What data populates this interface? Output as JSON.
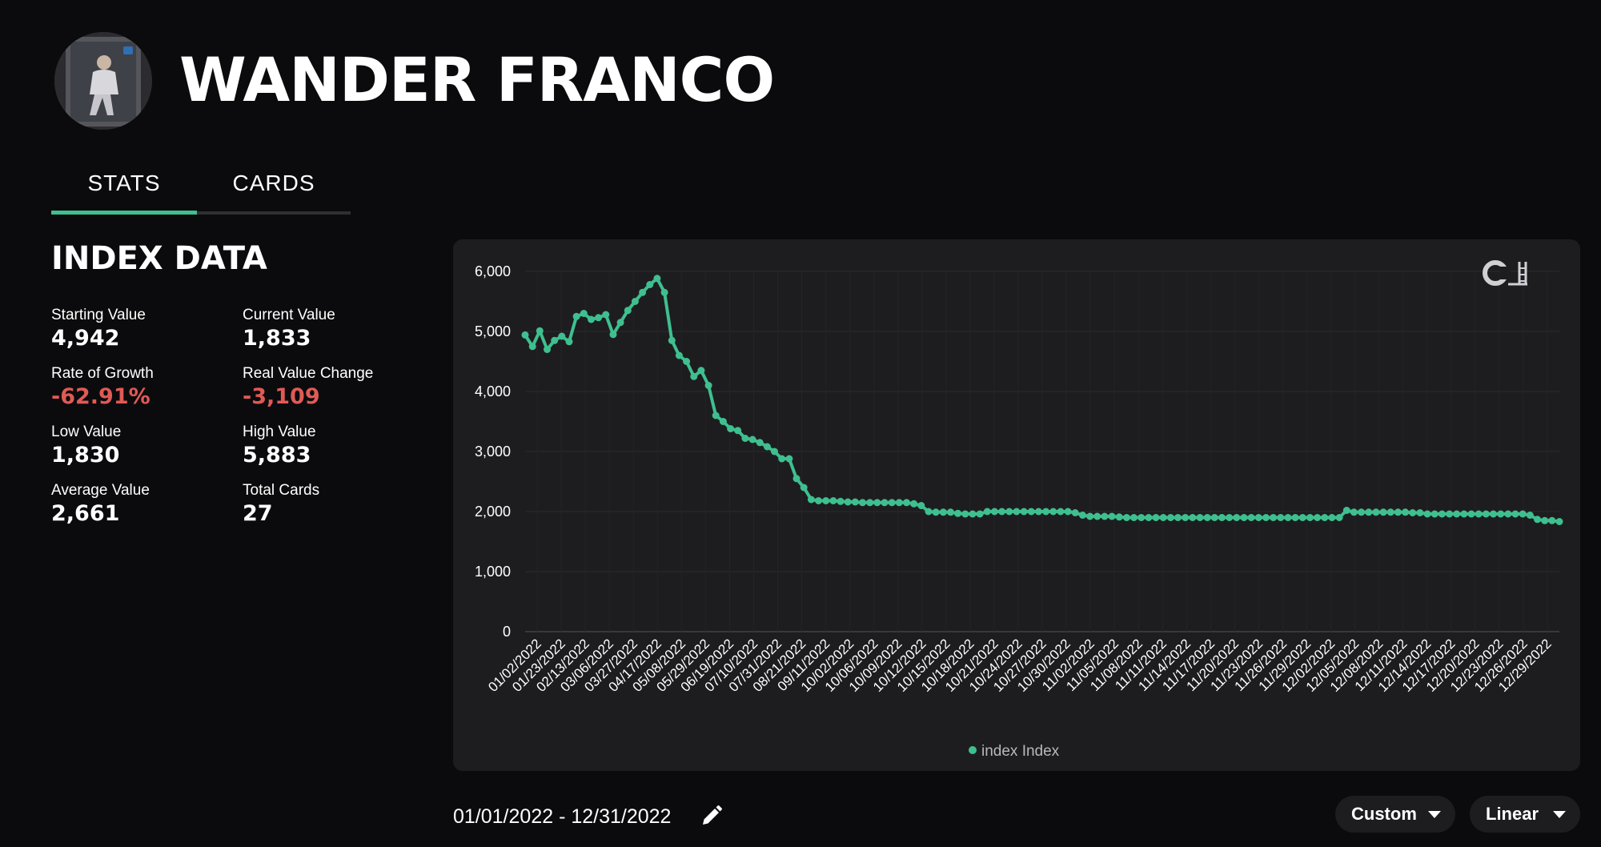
{
  "player": {
    "name": "WANDER FRANCO"
  },
  "tabs": [
    {
      "label": "STATS",
      "active": true
    },
    {
      "label": "CARDS",
      "active": false
    }
  ],
  "index": {
    "title": "INDEX DATA",
    "stats": [
      {
        "label": "Starting Value",
        "value": "4,942",
        "negative": false
      },
      {
        "label": "Current Value",
        "value": "1,833",
        "negative": false
      },
      {
        "label": "Rate of Growth",
        "value": "-62.91%",
        "negative": true
      },
      {
        "label": "Real Value Change",
        "value": "-3,109",
        "negative": true
      },
      {
        "label": "Low Value",
        "value": "1,830",
        "negative": false
      },
      {
        "label": "High Value",
        "value": "5,883",
        "negative": false
      },
      {
        "label": "Average Value",
        "value": "2,661",
        "negative": false
      },
      {
        "label": "Total Cards",
        "value": "27",
        "negative": false
      }
    ]
  },
  "controls": {
    "date_range": "01/01/2022 - 12/31/2022",
    "range_dropdown": "Custom",
    "scale_dropdown": "Linear"
  },
  "logo": {
    "text": "CARDLADDER"
  },
  "colors": {
    "accent": "#3fbf8f",
    "negative": "#e05a55",
    "panel": "#1d1d20",
    "background": "#0b0b0d"
  },
  "chart_data": {
    "type": "line",
    "ylim": [
      0,
      6000
    ],
    "yticks": [
      "0",
      "1,000",
      "2,000",
      "3,000",
      "4,000",
      "5,000",
      "6,000"
    ],
    "xtick_labels": [
      "01/02/2022",
      "01/23/2022",
      "02/13/2022",
      "03/06/2022",
      "03/27/2022",
      "04/17/2022",
      "05/08/2022",
      "05/29/2022",
      "06/19/2022",
      "07/10/2022",
      "07/31/2022",
      "08/21/2022",
      "09/11/2022",
      "10/02/2022",
      "10/06/2022",
      "10/09/2022",
      "10/12/2022",
      "10/15/2022",
      "10/18/2022",
      "10/21/2022",
      "10/24/2022",
      "10/27/2022",
      "10/30/2022",
      "11/02/2022",
      "11/05/2022",
      "11/08/2022",
      "11/11/2022",
      "11/14/2022",
      "11/17/2022",
      "11/20/2022",
      "11/23/2022",
      "11/26/2022",
      "11/29/2022",
      "12/02/2022",
      "12/05/2022",
      "12/08/2022",
      "12/11/2022",
      "12/14/2022",
      "12/17/2022",
      "12/20/2022",
      "12/23/2022",
      "12/26/2022",
      "12/29/2022"
    ],
    "legend": "index Index",
    "series": [
      {
        "name": "index Index",
        "values": [
          4942,
          4750,
          5010,
          4700,
          4850,
          4920,
          4830,
          5250,
          5300,
          5200,
          5230,
          5280,
          4950,
          5150,
          5350,
          5500,
          5650,
          5780,
          5883,
          5650,
          4850,
          4600,
          4500,
          4250,
          4350,
          4100,
          3600,
          3500,
          3380,
          3350,
          3220,
          3200,
          3150,
          3080,
          3000,
          2880,
          2880,
          2550,
          2400,
          2200,
          2180,
          2180,
          2180,
          2170,
          2160,
          2160,
          2150,
          2150,
          2150,
          2150,
          2150,
          2150,
          2150,
          2130,
          2100,
          2000,
          1990,
          1990,
          1990,
          1970,
          1960,
          1960,
          1960,
          2000,
          2000,
          2000,
          2000,
          2000,
          2000,
          2000,
          2000,
          2000,
          2000,
          2000,
          2000,
          1980,
          1940,
          1920,
          1920,
          1920,
          1920,
          1910,
          1900,
          1900,
          1900,
          1900,
          1900,
          1900,
          1900,
          1900,
          1900,
          1900,
          1900,
          1900,
          1900,
          1900,
          1900,
          1900,
          1900,
          1900,
          1900,
          1900,
          1900,
          1900,
          1900,
          1900,
          1900,
          1900,
          1900,
          1900,
          1900,
          1900,
          2020,
          1990,
          1990,
          1990,
          1990,
          1990,
          1990,
          1990,
          1990,
          1980,
          1980,
          1960,
          1960,
          1960,
          1960,
          1960,
          1960,
          1960,
          1960,
          1960,
          1960,
          1960,
          1960,
          1960,
          1960,
          1940,
          1870,
          1850,
          1850,
          1833
        ]
      }
    ]
  }
}
